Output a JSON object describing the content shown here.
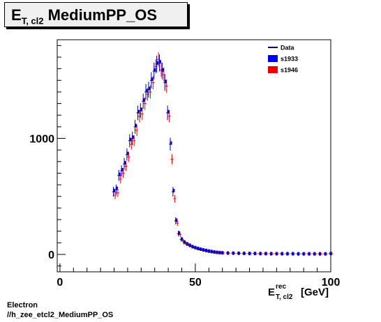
{
  "title": {
    "main": "E",
    "sub": "T, cl2",
    "rest": "MediumPP_OS"
  },
  "footer": {
    "line1": "Electron",
    "line2": "//h_zee_etcl2_MediumPP_OS"
  },
  "chart_data": {
    "type": "scatter",
    "xlim": [
      -1,
      100
    ],
    "ylim": [
      -150,
      1850
    ],
    "xticks": [
      0,
      50,
      100
    ],
    "yticks": [
      0,
      1000
    ],
    "xlabel": {
      "main": "E",
      "sup": "rec",
      "sub": "T, cl2",
      "unit": "[GeV]"
    },
    "ylabel": "",
    "grid": false,
    "legend_position": "top-right",
    "x": [
      20,
      21,
      22,
      23,
      24,
      25,
      26,
      27,
      28,
      29,
      30,
      31,
      32,
      33,
      34,
      35,
      36,
      37,
      38,
      39,
      40,
      41,
      42,
      43,
      44,
      45,
      46,
      47,
      48,
      49,
      50,
      51,
      52,
      53,
      54,
      55,
      56,
      57,
      58,
      59,
      60,
      62,
      64,
      66,
      68,
      70,
      72,
      74,
      76,
      78,
      80,
      82,
      84,
      86,
      88,
      90,
      92,
      94,
      96,
      98,
      100
    ],
    "series": [
      {
        "name": "Data",
        "color": "#000099",
        "style": "line-errorbar",
        "values": [
          540,
          560,
          680,
          720,
          780,
          860,
          980,
          1000,
          1100,
          1220,
          1240,
          1320,
          1400,
          1420,
          1500,
          1580,
          1640,
          1650,
          1580,
          1480,
          1220,
          950,
          540,
          290,
          180,
          130,
          105,
          90,
          78,
          66,
          58,
          50,
          44,
          38,
          33,
          28,
          24,
          20,
          17,
          15,
          14,
          12,
          11,
          10,
          9,
          8,
          8,
          7,
          7,
          6,
          6,
          6,
          6,
          6,
          5,
          5,
          5,
          5,
          5,
          5,
          8
        ]
      },
      {
        "name": "s1933",
        "color": "#0000ee",
        "style": "marker",
        "values": [
          550,
          570,
          690,
          730,
          790,
          870,
          990,
          1010,
          1110,
          1230,
          1250,
          1330,
          1410,
          1430,
          1510,
          1590,
          1650,
          1660,
          1590,
          1490,
          1230,
          960,
          550,
          295,
          185,
          132,
          107,
          91,
          79,
          67,
          59,
          51,
          45,
          39,
          34,
          29,
          25,
          21,
          18,
          16,
          14,
          12,
          11,
          10,
          9,
          8,
          8,
          7,
          7,
          6,
          6,
          6,
          6,
          6,
          5,
          5,
          5,
          5,
          5,
          5,
          8
        ]
      },
      {
        "name": "s1946",
        "color": "#ee0000",
        "style": "marker",
        "values": [
          510,
          530,
          650,
          700,
          760,
          840,
          950,
          980,
          1070,
          1190,
          1210,
          1300,
          1380,
          1400,
          1480,
          1620,
          1680,
          1590,
          1550,
          1450,
          1190,
          820,
          480,
          270,
          170,
          125,
          100,
          86,
          74,
          63,
          55,
          48,
          42,
          36,
          31,
          27,
          23,
          19,
          16,
          14,
          13,
          11,
          10,
          9,
          8,
          8,
          7,
          7,
          6,
          6,
          6,
          5,
          5,
          5,
          5,
          5,
          5,
          5,
          5,
          5,
          7
        ]
      }
    ]
  }
}
